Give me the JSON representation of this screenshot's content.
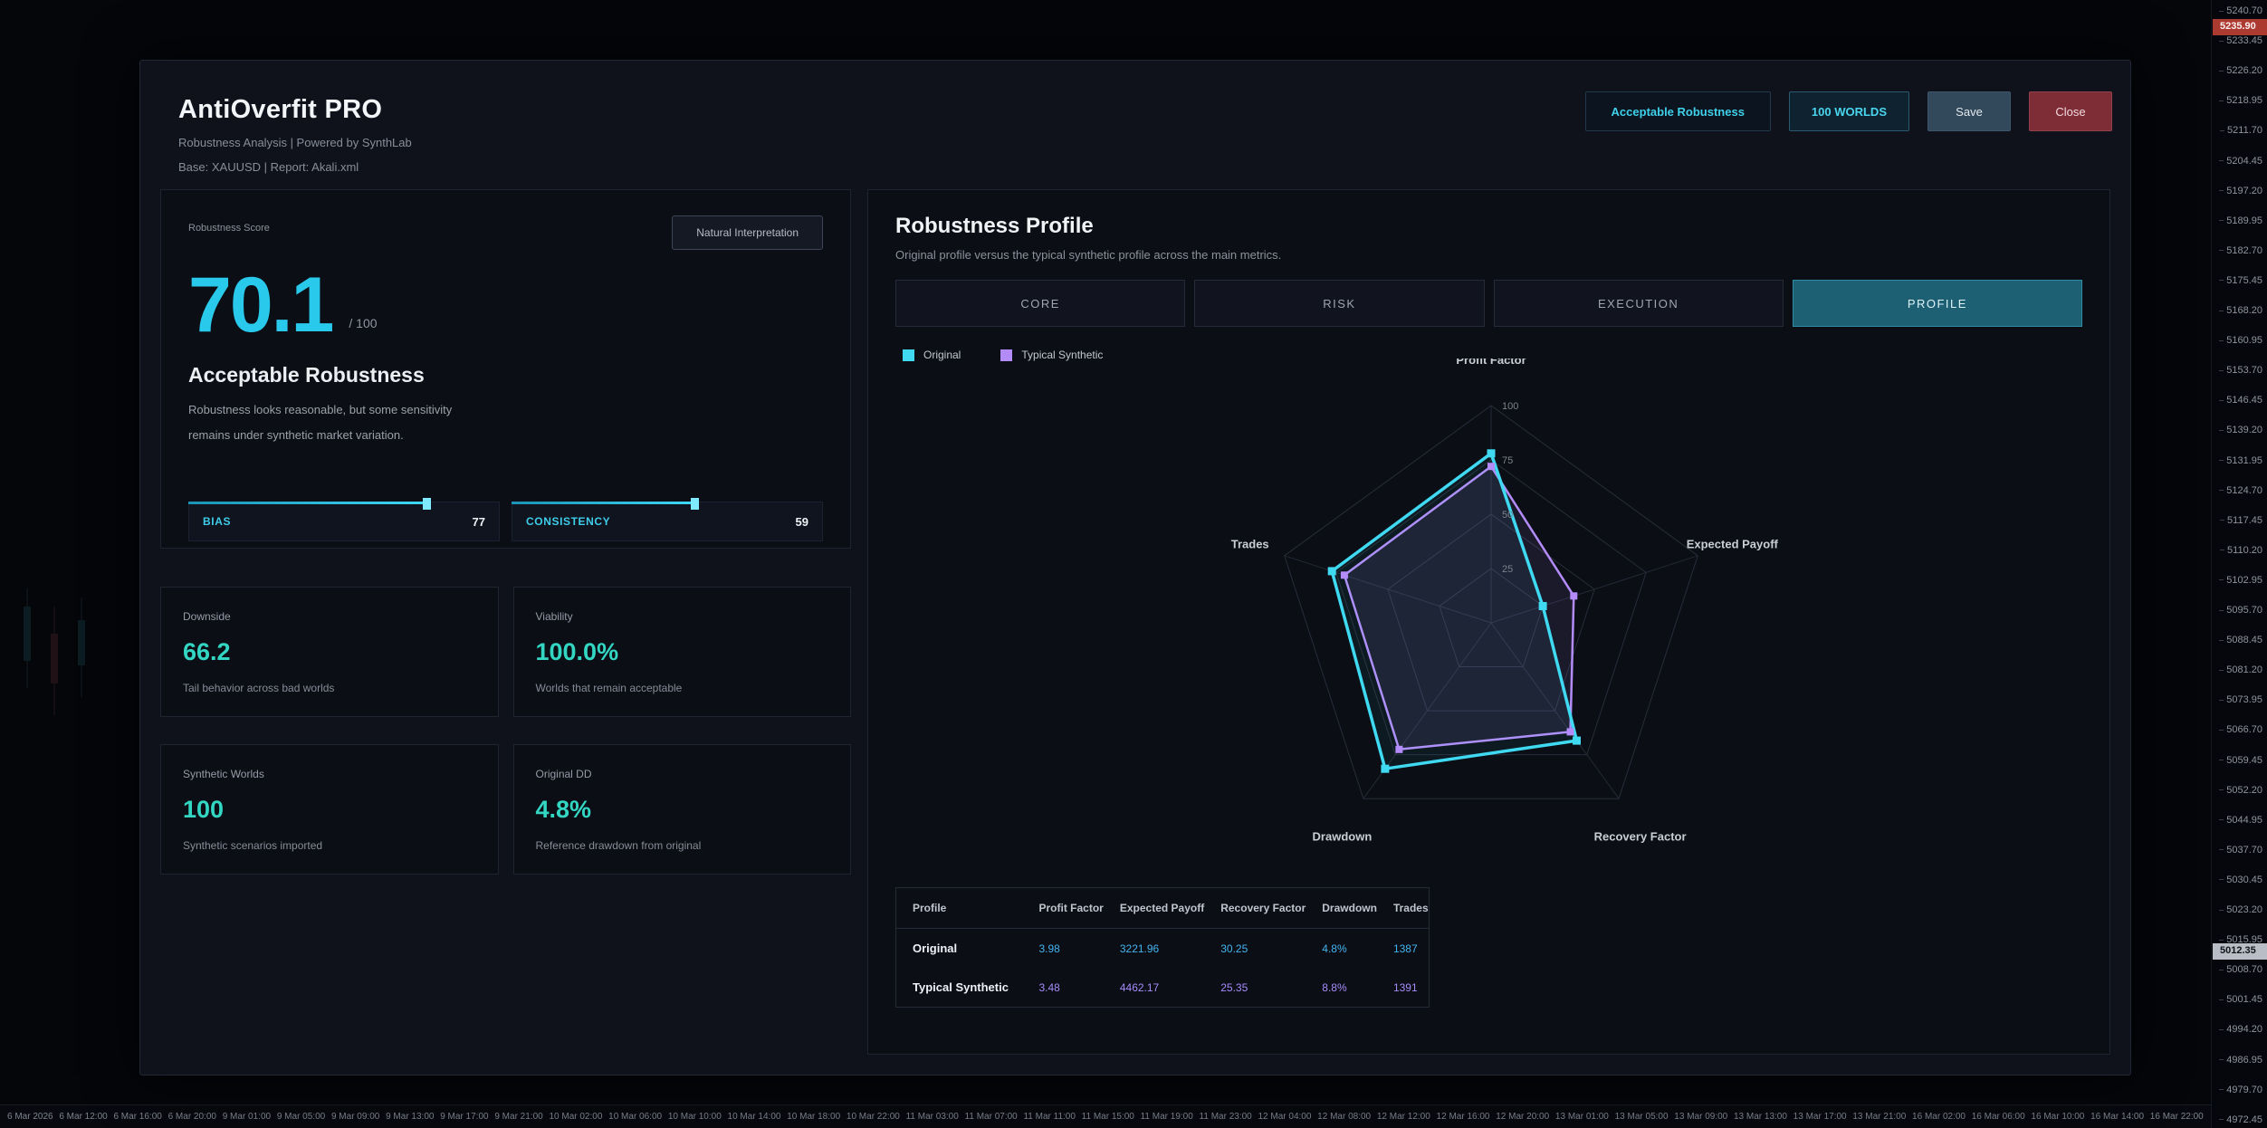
{
  "app": {
    "title": "AntiOverfit PRO",
    "subtitle": "Robustness Analysis | Powered by SynthLab",
    "base_line": "Base: XAUUSD  |  Report: Akali.xml"
  },
  "header_actions": {
    "status_badge": "Acceptable Robustness",
    "worlds_badge": "100 WORLDS",
    "save_label": "Save",
    "close_label": "Close"
  },
  "score_card": {
    "label": "Robustness Score",
    "interpretation_button": "Natural Interpretation",
    "score": "70.1",
    "score_denominator": "/ 100",
    "verdict": "Acceptable Robustness",
    "description_line1": "Robustness looks reasonable, but some sensitivity",
    "description_line2": "remains under synthetic market variation.",
    "bars": [
      {
        "label": "BIAS",
        "value": 77
      },
      {
        "label": "CONSISTENCY",
        "value": 59
      }
    ]
  },
  "stat_cards": [
    {
      "title": "Downside",
      "value": "66.2",
      "subtitle": "Tail behavior across bad worlds"
    },
    {
      "title": "Viability",
      "value": "100.0%",
      "subtitle": "Worlds that remain acceptable"
    },
    {
      "title": "Synthetic Worlds",
      "value": "100",
      "subtitle": "Synthetic scenarios imported"
    },
    {
      "title": "Original DD",
      "value": "4.8%",
      "subtitle": "Reference drawdown from original"
    }
  ],
  "profile_panel": {
    "title": "Robustness Profile",
    "subtitle": "Original profile versus the typical synthetic profile across the main metrics.",
    "tabs": [
      {
        "label": "CORE",
        "active": false
      },
      {
        "label": "RISK",
        "active": false
      },
      {
        "label": "EXECUTION",
        "active": false
      },
      {
        "label": "PROFILE",
        "active": true
      }
    ],
    "legend": [
      {
        "label": "Original",
        "color": "#3fd9f2"
      },
      {
        "label": "Typical Synthetic",
        "color": "#b48cfa"
      }
    ]
  },
  "chart_data": {
    "type": "radar",
    "categories": [
      "Profit Factor",
      "Expected Payoff",
      "Recovery Factor",
      "Drawdown",
      "Trades"
    ],
    "rings": [
      25,
      50,
      75,
      100
    ],
    "max": 100,
    "series": [
      {
        "name": "Original",
        "color": "#3fd9f2",
        "fill_opacity": 0.06,
        "values": [
          78,
          25,
          67,
          83,
          77
        ]
      },
      {
        "name": "Typical Synthetic",
        "color": "#b48cfa",
        "fill_opacity": 0.1,
        "values": [
          72,
          40,
          62,
          72,
          71
        ]
      }
    ]
  },
  "profile_table": {
    "headers": [
      "Profile",
      "Profit Factor",
      "Expected Payoff",
      "Recovery Factor",
      "Drawdown",
      "Trades"
    ],
    "rows": [
      {
        "name": "Original",
        "color": "#44b4ef",
        "values": [
          "3.98",
          "3221.96",
          "30.25",
          "4.8%",
          "1387"
        ]
      },
      {
        "name": "Typical Synthetic",
        "color": "#a78bfa",
        "values": [
          "3.48",
          "4462.17",
          "25.35",
          "8.8%",
          "1391"
        ]
      }
    ]
  },
  "price_axis": {
    "labels": [
      "5240.70",
      "5233.45",
      "5226.20",
      "5218.95",
      "5211.70",
      "5204.45",
      "5197.20",
      "5189.95",
      "5182.70",
      "5175.45",
      "5168.20",
      "5160.95",
      "5153.70",
      "5146.45",
      "5139.20",
      "5131.95",
      "5124.70",
      "5117.45",
      "5110.20",
      "5102.95",
      "5095.70",
      "5088.45",
      "5081.20",
      "5073.95",
      "5066.70",
      "5059.45",
      "5052.20",
      "5044.95",
      "5037.70",
      "5030.45",
      "5023.20",
      "5015.95",
      "5008.70",
      "5001.45",
      "4994.20",
      "4986.95",
      "4979.70",
      "4972.45"
    ],
    "highlight": {
      "value": "5012.35"
    },
    "ask_badge": {
      "value": "5235.90"
    }
  },
  "time_axis": {
    "labels": [
      "6 Mar 2026",
      "6 Mar 12:00",
      "6 Mar 16:00",
      "6 Mar 20:00",
      "9 Mar 01:00",
      "9 Mar 05:00",
      "9 Mar 09:00",
      "9 Mar 13:00",
      "9 Mar 17:00",
      "9 Mar 21:00",
      "10 Mar 02:00",
      "10 Mar 06:00",
      "10 Mar 10:00",
      "10 Mar 14:00",
      "10 Mar 18:00",
      "10 Mar 22:00",
      "11 Mar 03:00",
      "11 Mar 07:00",
      "11 Mar 11:00",
      "11 Mar 15:00",
      "11 Mar 19:00",
      "11 Mar 23:00",
      "12 Mar 04:00",
      "12 Mar 08:00",
      "12 Mar 12:00",
      "12 Mar 16:00",
      "12 Mar 20:00",
      "13 Mar 01:00",
      "13 Mar 05:00",
      "13 Mar 09:00",
      "13 Mar 13:00",
      "13 Mar 17:00",
      "13 Mar 21:00",
      "16 Mar 02:00",
      "16 Mar 06:00",
      "16 Mar 10:00",
      "16 Mar 14:00",
      "16 Mar 22:00"
    ]
  }
}
